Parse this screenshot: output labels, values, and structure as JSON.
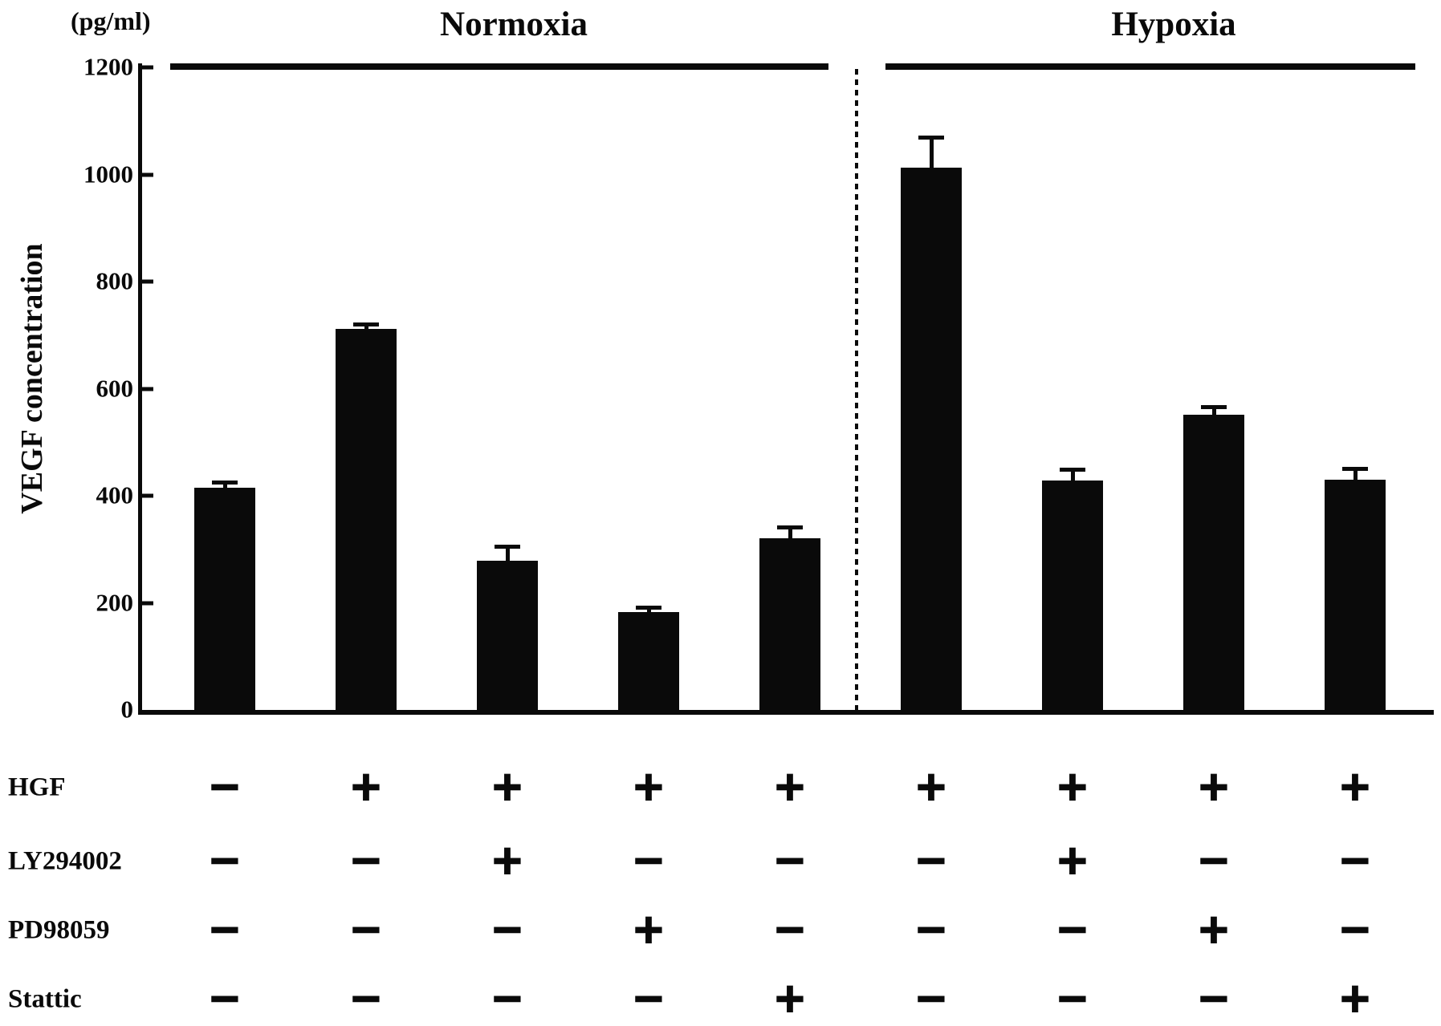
{
  "chart_data": {
    "type": "bar",
    "title": "",
    "ylabel": "VEGF concentration",
    "y_unit_label": "(pg/ml)",
    "ylim": [
      0,
      1200
    ],
    "yticks": [
      0,
      200,
      400,
      600,
      800,
      1000,
      1200
    ],
    "grid": false,
    "bar_color": "#0a0a0a",
    "groups": [
      {
        "label": "Normoxia",
        "bars": [
          0,
          1,
          2,
          3,
          4
        ]
      },
      {
        "label": "Hypoxia",
        "bars": [
          5,
          6,
          7,
          8
        ]
      }
    ],
    "categories": [
      "Normoxia control",
      "Normoxia HGF",
      "Normoxia HGF + LY294002",
      "Normoxia HGF + PD98059",
      "Normoxia HGF + Stattic",
      "Hypoxia HGF",
      "Hypoxia HGF + LY294002",
      "Hypoxia HGF + PD98059",
      "Hypoxia HGF + Stattic"
    ],
    "series": [
      {
        "name": "VEGF concentration (pg/ml)",
        "values": [
          415,
          712,
          278,
          183,
          320,
          1012,
          428,
          552,
          430
        ],
        "errors": [
          10,
          9,
          27,
          9,
          21,
          58,
          22,
          15,
          21
        ]
      }
    ],
    "conditions": {
      "rows": [
        "HGF",
        "LY294002",
        "PD98059",
        "Stattic"
      ],
      "matrix": [
        [
          "−",
          "+",
          "+",
          "+",
          "+",
          "+",
          "+",
          "+",
          "+"
        ],
        [
          "−",
          "−",
          "+",
          "−",
          "−",
          "−",
          "+",
          "−",
          "−"
        ],
        [
          "−",
          "−",
          "−",
          "+",
          "−",
          "−",
          "−",
          "+",
          "−"
        ],
        [
          "−",
          "−",
          "−",
          "−",
          "+",
          "−",
          "−",
          "−",
          "+"
        ]
      ]
    }
  },
  "colors": {
    "ink": "#0a0a0a",
    "background": "#ffffff"
  }
}
